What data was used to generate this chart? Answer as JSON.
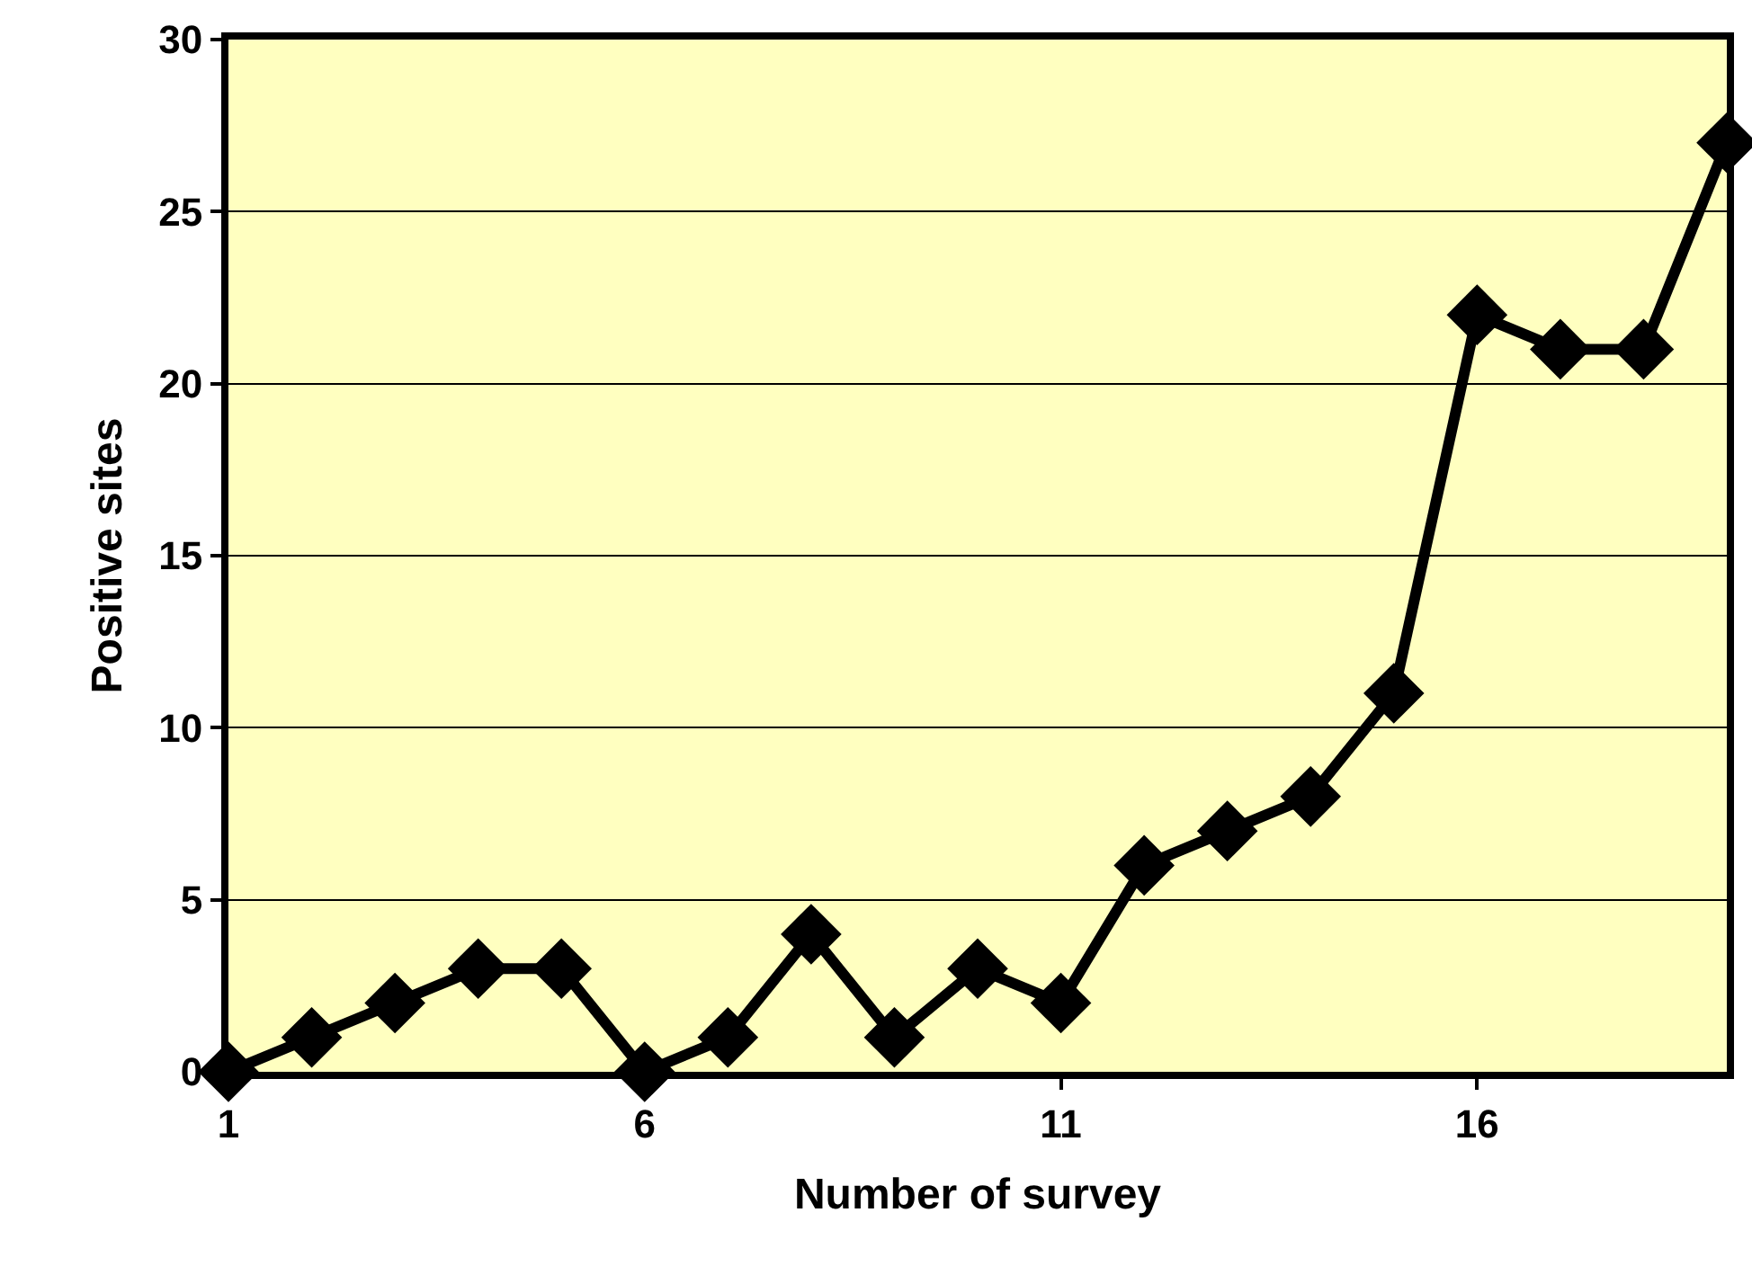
{
  "chart_data": {
    "type": "line",
    "xlabel": "Number of survey",
    "ylabel": "Positive sites",
    "x": [
      1,
      2,
      3,
      4,
      5,
      6,
      7,
      8,
      9,
      10,
      11,
      12,
      13,
      14,
      15,
      16,
      17,
      18,
      19
    ],
    "series": [
      {
        "color": "#000000",
        "values": [
          0,
          1,
          2,
          3,
          3,
          0,
          1,
          4,
          1,
          3,
          2,
          6,
          7,
          8,
          11,
          22,
          21,
          21,
          27
        ]
      }
    ],
    "xlim": [
      1,
      19
    ],
    "xticks": [
      1,
      6,
      11,
      16
    ],
    "ylim": [
      0,
      30
    ],
    "yticks": [
      0,
      5,
      10,
      15,
      20,
      25,
      30
    ],
    "grid": "y",
    "marker": "diamond",
    "line_style": "solid"
  }
}
